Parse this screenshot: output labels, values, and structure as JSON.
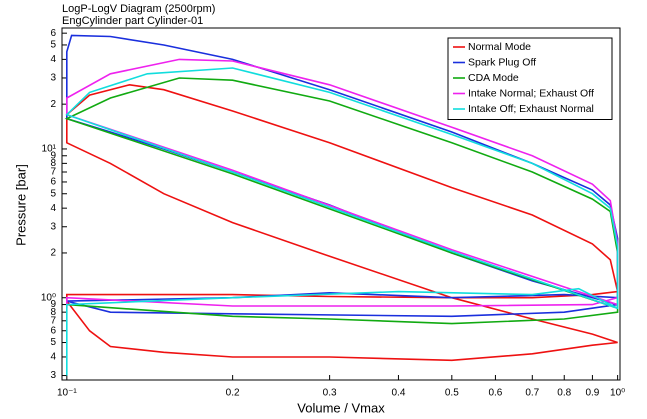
{
  "chart_data": {
    "type": "line",
    "title": "LogP-LogV Diagram (2500rpm)",
    "subtitle": "EngCylinder part Cylinder-01",
    "x_label": "Volume / Vmax",
    "y_label": "Pressure [bar]",
    "xlog": true,
    "ylog": true,
    "grid": false,
    "legend_position": "upper-right",
    "xlim": [
      0.098,
      1.01
    ],
    "ylim": [
      0.28,
      65
    ],
    "xticks": [
      {
        "value": 0.1,
        "label": "10⁻¹"
      },
      0.2,
      0.3,
      0.4,
      0.5,
      0.6,
      0.7,
      0.8,
      0.9,
      {
        "value": 1,
        "label": "10⁰"
      }
    ],
    "yticks": [
      {
        "value": 0.3,
        "label": "3"
      },
      {
        "value": 0.4,
        "label": "4"
      },
      {
        "value": 0.5,
        "label": "5"
      },
      {
        "value": 0.6,
        "label": "6"
      },
      {
        "value": 0.7,
        "label": "7"
      },
      {
        "value": 0.8,
        "label": "8"
      },
      {
        "value": 0.9,
        "label": "9"
      },
      {
        "value": 1,
        "label": "10⁰"
      },
      2,
      3,
      4,
      5,
      6,
      7,
      8,
      9,
      {
        "value": 10,
        "label": "10¹"
      },
      {
        "value": 20,
        "label": "2"
      },
      {
        "value": 30,
        "label": "3"
      },
      {
        "value": 40,
        "label": "4"
      },
      {
        "value": 50,
        "label": "5"
      },
      {
        "value": 60,
        "label": "6"
      }
    ],
    "series": [
      {
        "name": "Normal Mode",
        "color": "#ee1111",
        "x": [
          0.1,
          0.11,
          0.13,
          0.15,
          0.2,
          0.3,
          0.5,
          0.7,
          0.9,
          0.97,
          1.0,
          0.9,
          0.7,
          0.5,
          0.3,
          0.2,
          0.1,
          0.1,
          0.11,
          0.12,
          0.15,
          0.2,
          0.3,
          0.5,
          0.7,
          0.9,
          1.0,
          0.9,
          0.7,
          0.5,
          0.3,
          0.2,
          0.15,
          0.12,
          0.1,
          0.1
        ],
        "values": [
          17,
          23,
          27,
          25,
          18,
          11,
          5.5,
          3.6,
          2.3,
          1.8,
          1.1,
          1.05,
          1.0,
          1.0,
          1.02,
          1.05,
          1.05,
          0.95,
          0.6,
          0.47,
          0.43,
          0.4,
          0.4,
          0.38,
          0.42,
          0.48,
          0.5,
          0.57,
          0.72,
          1.0,
          1.9,
          3.2,
          5,
          8,
          11,
          17
        ]
      },
      {
        "name": "Spark Plug Off",
        "color": "#1a2fdd",
        "x": [
          1.0,
          0.7,
          0.5,
          0.3,
          0.2,
          0.15,
          0.12,
          0.1,
          0.1,
          0.102,
          0.12,
          0.15,
          0.2,
          0.3,
          0.5,
          0.7,
          0.9,
          0.97,
          1.0,
          1.0,
          0.8,
          0.5,
          0.3,
          0.2,
          0.1,
          0.12,
          0.2,
          0.5,
          0.8,
          1.0
        ],
        "values": [
          0.9,
          1.3,
          2.0,
          4.2,
          7,
          10,
          13,
          16,
          45,
          58,
          57,
          50,
          40,
          25,
          13,
          8,
          5.3,
          4.2,
          2.5,
          1.0,
          1.05,
          1.0,
          1.08,
          1.0,
          0.95,
          0.8,
          0.78,
          0.75,
          0.8,
          0.9
        ]
      },
      {
        "name": "CDA Mode",
        "color": "#11aa11",
        "x": [
          1.0,
          0.5,
          0.2,
          0.1,
          0.12,
          0.16,
          0.2,
          0.3,
          0.5,
          0.7,
          0.9,
          0.97,
          1.0,
          1.0,
          0.8,
          0.5,
          0.3,
          0.2,
          0.1
        ],
        "values": [
          0.85,
          2.0,
          6.8,
          16,
          22,
          30,
          29,
          21,
          11,
          7,
          4.6,
          3.8,
          2.0,
          0.8,
          0.72,
          0.67,
          0.72,
          0.75,
          0.9
        ]
      },
      {
        "name": "Intake Normal; Exhaust Off",
        "color": "#ee22ee",
        "x": [
          1.0,
          0.5,
          0.2,
          0.1,
          0.1,
          0.12,
          0.16,
          0.2,
          0.3,
          0.5,
          0.7,
          0.9,
          0.97,
          1.0,
          1.0,
          0.9,
          0.5,
          0.2,
          0.1,
          0.1
        ],
        "values": [
          0.9,
          2.1,
          7.2,
          17,
          22,
          32,
          40,
          39,
          27,
          14,
          9,
          5.8,
          4.5,
          2.3,
          1.0,
          0.9,
          0.88,
          0.88,
          1.0,
          0.85
        ]
      },
      {
        "name": "Intake Off; Exhaust Normal",
        "color": "#11dddd",
        "x": [
          1.0,
          0.5,
          0.2,
          0.1,
          0.11,
          0.14,
          0.2,
          0.3,
          0.5,
          0.7,
          0.9,
          0.97,
          1.0,
          1.0,
          0.85,
          0.7,
          0.4,
          0.2,
          0.1,
          0.1
        ],
        "values": [
          0.85,
          2.05,
          7,
          17,
          24,
          32,
          35,
          24,
          12.5,
          8,
          5,
          4,
          2.2,
          0.85,
          1.15,
          1.05,
          1.1,
          1.0,
          0.9,
          0.3
        ]
      }
    ]
  }
}
